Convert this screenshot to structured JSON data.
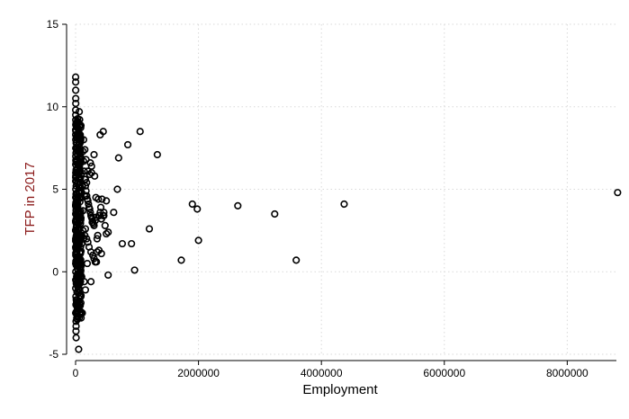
{
  "chart_data": {
    "type": "scatter",
    "title": "",
    "xlabel": "Employment",
    "ylabel": "TFP in 2017",
    "xlim": [
      0,
      8800000
    ],
    "ylim": [
      -5,
      15
    ],
    "x_ticks": [
      0,
      2000000,
      4000000,
      6000000,
      8000000
    ],
    "x_tick_labels": [
      "0",
      "2000000",
      "4000000",
      "6000000",
      "8000000"
    ],
    "y_ticks": [
      -5,
      0,
      5,
      10,
      15
    ],
    "y_tick_labels": [
      "-5",
      "0",
      "5",
      "10",
      "15"
    ],
    "grid": "y-dotted",
    "legend": "none",
    "colors": {
      "marker": "#000000",
      "ylabel": "#8B1A1A",
      "axis": "#000000",
      "grid": "#d9d9d9"
    },
    "series": [
      {
        "marker": "hollow-circle",
        "x": [
          1000,
          1500,
          2000,
          2500,
          3000,
          1200,
          1800,
          2200,
          2800,
          1000,
          1400,
          2600,
          3000,
          2000,
          1600,
          2400,
          1100,
          2900,
          1700,
          2300,
          1300,
          2700,
          1900,
          2100,
          1000,
          3000,
          1500,
          2500,
          2000,
          1200,
          5000,
          6000,
          5500,
          7000,
          8000,
          6500,
          9000,
          7500,
          5200,
          8500,
          6200,
          7200,
          9500,
          5800,
          8800,
          6800,
          5400,
          7800,
          10000,
          12000,
          15000,
          18000,
          20000,
          25000,
          30000,
          35000,
          40000,
          45000,
          50000,
          60000,
          70000,
          80000,
          90000,
          100000,
          120000,
          130000,
          140000,
          150000,
          160000,
          170000,
          180000,
          190000,
          200000,
          210000,
          220000,
          230000,
          240000,
          250000,
          260000,
          270000,
          280000,
          290000,
          300000,
          120000,
          150000,
          180000,
          200000,
          220000,
          250000,
          280000,
          300000,
          320000,
          340000,
          350000,
          360000,
          380000,
          400000,
          420000,
          450000,
          480000,
          500000,
          100000,
          140000,
          160000,
          190000,
          230000,
          260000,
          310000,
          330000,
          370000,
          390000,
          410000,
          430000,
          460000,
          70000,
          90000,
          110000,
          130000,
          150000,
          170000,
          80000,
          100000,
          120000,
          150000,
          180000,
          200000,
          240000,
          260000,
          300000,
          60000,
          80000,
          100000,
          130000,
          160000,
          50000,
          70000,
          400000,
          450000,
          330000,
          420000,
          500000,
          1050000,
          850000,
          1330000,
          700000,
          680000,
          460000,
          380000,
          530000,
          270000,
          320000,
          350000,
          420000,
          620000,
          760000,
          910000,
          1200000,
          1900000,
          1980000,
          2640000,
          3240000,
          4370000,
          8820000,
          2000000,
          1720000,
          3590000,
          960000,
          530000,
          250000,
          320000,
          110000,
          160000,
          180000
        ],
        "y": [
          11.8,
          11.5,
          11.0,
          10.5,
          10.2,
          9.8,
          9.5,
          9.2,
          8.9,
          8.6,
          8.3,
          8.0,
          7.5,
          7.0,
          6.5,
          6.0,
          5.5,
          5.0,
          4.5,
          4.0,
          3.5,
          3.0,
          2.5,
          2.0,
          1.5,
          1.0,
          0.5,
          0.0,
          -0.5,
          -1.0,
          -1.5,
          -2.0,
          -2.5,
          -3.0,
          -3.3,
          -3.6,
          -4.0,
          9.0,
          8.5,
          7.8,
          7.2,
          6.7,
          6.2,
          5.7,
          5.2,
          4.7,
          4.2,
          3.7,
          3.2,
          2.7,
          2.2,
          1.7,
          1.2,
          0.7,
          0.2,
          -0.3,
          -0.8,
          -1.3,
          -4.7,
          9.7,
          8.1,
          6.9,
          5.9,
          4.8,
          7.3,
          6.7,
          6.1,
          5.6,
          5.2,
          4.9,
          4.6,
          4.4,
          4.3,
          4.1,
          3.9,
          3.8,
          3.6,
          3.4,
          3.3,
          3.2,
          3.0,
          2.9,
          2.8,
          2.5,
          2.2,
          2.0,
          1.8,
          1.5,
          1.2,
          1.0,
          0.8,
          0.6,
          0.6,
          1.2,
          2.2,
          3.4,
          3.6,
          3.2,
          3.4,
          2.8,
          2.3,
          -0.3,
          -0.6,
          -1.1,
          0.5,
          5.9,
          6.4,
          5.8,
          4.5,
          4.4,
          3.4,
          3.9,
          4.4,
          3.4,
          -2.6,
          -2.8,
          -2.5,
          8.0,
          7.4,
          6.8,
          1.5,
          2.2,
          3.7,
          4.6,
          5.4,
          6.1,
          6.6,
          6.0,
          7.1,
          0.9,
          -0.1,
          1.7,
          2.0,
          2.6,
          8.5,
          5.4,
          8.3,
          8.5,
          3.3,
          3.2,
          4.3,
          8.5,
          7.7,
          7.1,
          6.9,
          5.0,
          3.6,
          1.3,
          2.4,
          3.0,
          3.1,
          2.0,
          1.1,
          3.6,
          1.7,
          1.7,
          2.6,
          4.1,
          3.8,
          4.0,
          3.5,
          4.1,
          4.8,
          1.9,
          0.7,
          0.7,
          0.1,
          -0.2,
          -0.6,
          0.6,
          5.2,
          5.6,
          4.6
        ]
      }
    ]
  }
}
